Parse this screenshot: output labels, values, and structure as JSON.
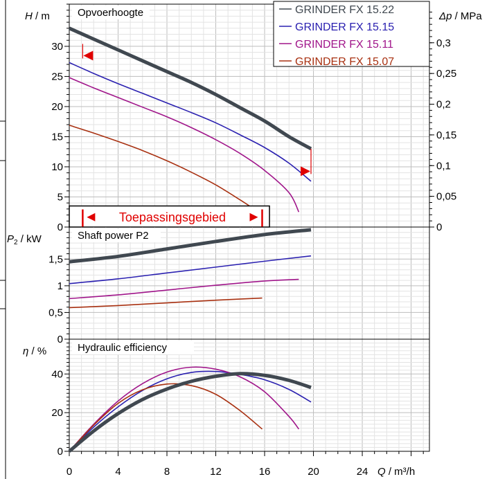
{
  "chart_data": {
    "type": "line",
    "x_axis": {
      "label_var": "Q",
      "label_unit": " / m³/h",
      "ticks": [
        0,
        4,
        8,
        12,
        16,
        20,
        24
      ],
      "range": [
        0,
        29.5
      ],
      "grid_step": 1
    },
    "legend": {
      "placement": "top-right",
      "entries": [
        {
          "name": "GRINDER FX 15.22",
          "color": "#404850"
        },
        {
          "name": "GRINDER FX 15.15",
          "color": "#2a20b0"
        },
        {
          "name": "GRINDER FX 15.11",
          "color": "#a0158a"
        },
        {
          "name": "GRINDER FX 15.07",
          "color": "#a83010"
        }
      ]
    },
    "panels": [
      {
        "id": "head",
        "title": "Opvoerhoogte",
        "y_label_var": "H",
        "y_label_unit": " / m",
        "y_range": [
          0,
          37
        ],
        "y_ticks": [
          {
            "v": 0,
            "t": "0"
          },
          {
            "v": 5,
            "t": "5"
          },
          {
            "v": 10,
            "t": "10"
          },
          {
            "v": 15,
            "t": "15"
          },
          {
            "v": 20,
            "t": "20"
          },
          {
            "v": 25,
            "t": "25"
          },
          {
            "v": 30,
            "t": "30"
          }
        ],
        "right_label_var": "Δp",
        "right_label_unit": " / MPa",
        "right_ticks": [
          {
            "v": 0,
            "t": "0"
          },
          {
            "v": 0.05,
            "t": "0,05"
          },
          {
            "v": 0.1,
            "t": "0,1"
          },
          {
            "v": 0.15,
            "t": "0,15"
          },
          {
            "v": 0.2,
            "t": "0,2"
          },
          {
            "v": 0.25,
            "t": "0,25"
          },
          {
            "v": 0.3,
            "t": "0,3"
          }
        ],
        "right_scale_m_per_mpa": 101.97,
        "grid_step": 1,
        "series": [
          {
            "name": "GRINDER FX 15.22",
            "color": "#404850",
            "width": 5,
            "x": [
              0,
              2,
              4,
              6,
              8,
              10,
              12,
              14,
              16,
              18,
              19.8
            ],
            "y": [
              33,
              31.2,
              29.4,
              27.6,
              25.8,
              24,
              22,
              19.8,
              17.6,
              15,
              13
            ]
          },
          {
            "name": "GRINDER FX 15.15",
            "color": "#2a20b0",
            "width": 1.6,
            "x": [
              0,
              2,
              4,
              6,
              8,
              10,
              12,
              14,
              16,
              18,
              19.8
            ],
            "y": [
              27.3,
              25.5,
              23.8,
              22.2,
              20.6,
              19,
              17.3,
              15.3,
              13.2,
              10.6,
              7.6
            ]
          },
          {
            "name": "GRINDER FX 15.11",
            "color": "#a0158a",
            "width": 1.6,
            "x": [
              0,
              2,
              4,
              6,
              8,
              10,
              12,
              14,
              16,
              18,
              18.8
            ],
            "y": [
              24.8,
              23.1,
              21.5,
              19.9,
              18.3,
              16.5,
              14.5,
              12.2,
              9.4,
              5.7,
              2.5
            ]
          },
          {
            "name": "GRINDER FX 15.07",
            "color": "#a83010",
            "width": 1.6,
            "x": [
              0,
              2,
              4,
              6,
              8,
              10,
              12,
              14,
              15.2
            ],
            "y": [
              16.9,
              15.6,
              14.2,
              12.7,
              11,
              9.1,
              7,
              4.5,
              2.9
            ]
          }
        ]
      },
      {
        "id": "power",
        "title": "Shaft power P2",
        "y_label_var": "P",
        "y_label_sub": "2",
        "y_label_unit": " / kW",
        "y_range": [
          0,
          2.1
        ],
        "y_ticks": [
          {
            "v": 0,
            "t": "0"
          },
          {
            "v": 0.5,
            "t": "0,5"
          },
          {
            "v": 1,
            "t": "1"
          },
          {
            "v": 1.5,
            "t": "1,5"
          }
        ],
        "grid_step": 0.1,
        "series": [
          {
            "name": "GRINDER FX 15.22",
            "color": "#404850",
            "width": 5,
            "x": [
              0,
              4,
              8,
              12,
              16,
              19.8
            ],
            "y": [
              1.45,
              1.55,
              1.69,
              1.83,
              1.96,
              2.05
            ]
          },
          {
            "name": "GRINDER FX 15.15",
            "color": "#2a20b0",
            "width": 1.6,
            "x": [
              0,
              4,
              8,
              12,
              16,
              19.8
            ],
            "y": [
              1.04,
              1.13,
              1.24,
              1.35,
              1.46,
              1.56
            ]
          },
          {
            "name": "GRINDER FX 15.11",
            "color": "#a0158a",
            "width": 1.6,
            "x": [
              0,
              4,
              8,
              12,
              16,
              18.8
            ],
            "y": [
              0.76,
              0.83,
              0.92,
              1.01,
              1.09,
              1.12
            ]
          },
          {
            "name": "GRINDER FX 15.07",
            "color": "#a83010",
            "width": 1.6,
            "x": [
              0,
              4,
              8,
              12,
              15.8
            ],
            "y": [
              0.59,
              0.63,
              0.68,
              0.73,
              0.77
            ]
          }
        ]
      },
      {
        "id": "eff",
        "title": "Hydraulic efficiency",
        "y_label_var": "η",
        "y_label_unit": " / %",
        "y_range": [
          0,
          58
        ],
        "y_ticks": [
          {
            "v": 0,
            "t": "0"
          },
          {
            "v": 20,
            "t": "20"
          },
          {
            "v": 40,
            "t": "40"
          }
        ],
        "grid_step": 2,
        "series": [
          {
            "name": "GRINDER FX 15.22",
            "color": "#404850",
            "width": 5,
            "x": [
              0,
              2,
              4,
              6,
              8,
              10,
              12,
              14,
              16,
              18,
              19.8
            ],
            "y": [
              0,
              10.5,
              19.5,
              26.8,
              32.2,
              36.2,
              38.8,
              40.2,
              39.3,
              36.7,
              33
            ]
          },
          {
            "name": "GRINDER FX 15.15",
            "color": "#2a20b0",
            "width": 1.6,
            "x": [
              0,
              2,
              4,
              6,
              8,
              10,
              12,
              14,
              16,
              18,
              19.8
            ],
            "y": [
              0,
              12.5,
              23,
              31.5,
              37.5,
              40.8,
              41.3,
              39.8,
              37,
              32,
              25.5
            ]
          },
          {
            "name": "GRINDER FX 15.11",
            "color": "#a0158a",
            "width": 1.6,
            "x": [
              0,
              2,
              4,
              6,
              8,
              10,
              12,
              14,
              16,
              18,
              18.8
            ],
            "y": [
              0,
              14,
              26,
              35,
              41,
              43.5,
              42.5,
              38.5,
              30.8,
              18,
              11.5
            ]
          },
          {
            "name": "GRINDER FX 15.07",
            "color": "#a83010",
            "width": 1.6,
            "x": [
              0,
              2,
              4,
              6,
              8,
              10,
              12,
              14,
              15.8
            ],
            "y": [
              0,
              13.5,
              24.8,
              31.8,
              34.8,
              34,
              29.5,
              21,
              11.5
            ]
          }
        ]
      }
    ],
    "application_range": {
      "label": "Toepassingsgebied",
      "color": "#e00000"
    },
    "head_markers": [
      {
        "x": 1.1,
        "y_top": 30.4,
        "y_bottom": 28,
        "direction": "left"
      },
      {
        "x": 19.8,
        "y_top": 13,
        "y_bottom": 8.8,
        "direction": "right"
      }
    ]
  }
}
